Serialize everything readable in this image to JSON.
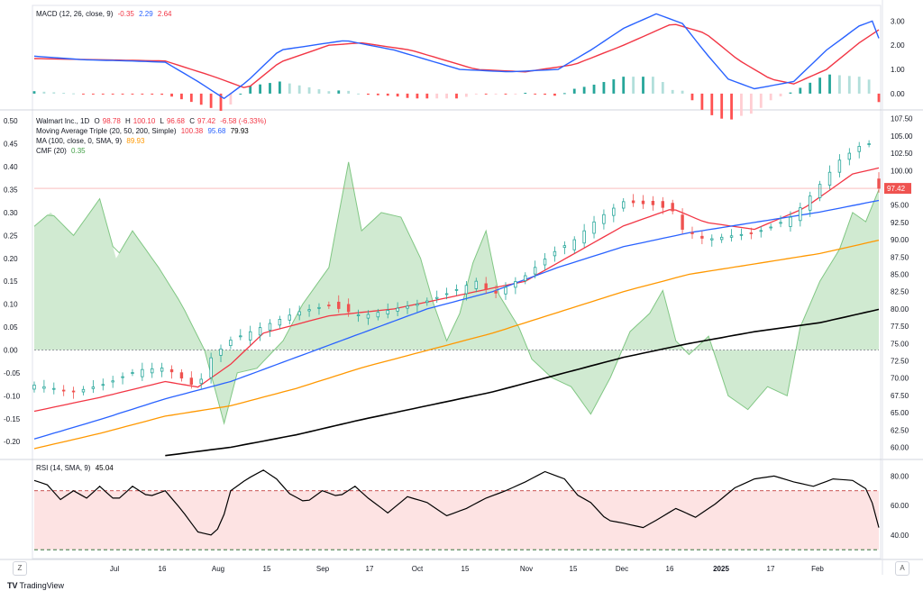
{
  "app": {
    "brand": "TradingView"
  },
  "macd_panel": {
    "label": "MACD (12, 26, close, 9)",
    "hist_value": "-0.35",
    "macd_value": "2.29",
    "signal_value": "2.64",
    "colors": {
      "macd": "#2962ff",
      "signal": "#f23645",
      "hist_pos_strong": "#26a69a",
      "hist_pos_weak": "#b2dfdb",
      "hist_neg_strong": "#ff5252",
      "hist_neg_weak": "#ffcdd2"
    },
    "axis_ticks": [
      "3.00",
      "2.00",
      "1.00",
      "0.00"
    ]
  },
  "main_panel": {
    "symbol": "Walmart Inc., 1D",
    "open_label": "O",
    "open": "98.78",
    "high_label": "H",
    "high": "100.10",
    "low_label": "L",
    "low": "96.68",
    "close_label": "C",
    "close": "97.42",
    "change": "-6.58 (-6.33%)",
    "ma_triple_label": "Moving Average Triple (20, 50, 200, Simple)",
    "ma20": "100.38",
    "ma50": "95.68",
    "ma200": "79.93",
    "ma100_label": "MA (100, close, 0, SMA, 9)",
    "ma100": "89.93",
    "cmf_label": "CMF (20)",
    "cmf": "0.35",
    "last_price_tag": "97.42",
    "colors": {
      "up": "#26a69a",
      "down": "#ef5350",
      "ma20": "#f23645",
      "ma50": "#2962ff",
      "ma100": "#ff9800",
      "ma200": "#000000",
      "cmf_fill": "#c8e6c9",
      "cmf_line": "#81c784"
    },
    "price_ticks": [
      "107.50",
      "105.00",
      "102.50",
      "100.00",
      "97.50",
      "95.00",
      "92.50",
      "90.00",
      "87.50",
      "85.00",
      "82.50",
      "80.00",
      "77.50",
      "75.00",
      "72.50",
      "70.00",
      "67.50",
      "65.00",
      "62.50",
      "60.00"
    ],
    "cmf_ticks": [
      "0.50",
      "0.45",
      "0.40",
      "0.35",
      "0.30",
      "0.25",
      "0.20",
      "0.15",
      "0.10",
      "0.05",
      "0.00",
      "-0.05",
      "-0.10",
      "-0.15",
      "-0.20"
    ]
  },
  "rsi_panel": {
    "label": "RSI (14, SMA, 9)",
    "value": "45.04",
    "colors": {
      "line": "#000000",
      "band": "#fde3e3",
      "bound": "#b71c1c",
      "mid": "#1b5e20"
    },
    "axis_ticks": [
      "80.00",
      "60.00",
      "40.00"
    ]
  },
  "time_axis": {
    "labels": [
      "Jul",
      "16",
      "Aug",
      "15",
      "Sep",
      "17",
      "Oct",
      "15",
      "Nov",
      "15",
      "Dec",
      "16",
      "2025",
      "17",
      "Feb"
    ]
  },
  "buttons": {
    "left": "Z",
    "right": "A"
  },
  "chart_data": {
    "type": "line",
    "title": "Walmart Inc., 1D",
    "x_range": [
      "Jun 2024",
      "Feb 2025"
    ],
    "price_ylim": [
      58.5,
      108.5
    ],
    "ohlc_last": {
      "open": 98.78,
      "high": 100.1,
      "low": 96.68,
      "close": 97.42,
      "change": -6.58,
      "change_pct": -6.33
    },
    "close_path": [
      [
        0,
        69.0
      ],
      [
        12,
        68.0
      ],
      [
        22,
        69.2
      ],
      [
        32,
        71.2
      ],
      [
        40,
        71.5
      ],
      [
        45,
        70.0
      ],
      [
        50,
        68.5
      ],
      [
        53,
        72.5
      ],
      [
        60,
        75.5
      ],
      [
        70,
        77.5
      ],
      [
        80,
        79.5
      ],
      [
        90,
        80.5
      ],
      [
        100,
        79.0
      ],
      [
        110,
        80.0
      ],
      [
        118,
        80.8
      ],
      [
        125,
        82.0
      ],
      [
        135,
        84.0
      ],
      [
        140,
        82.0
      ],
      [
        150,
        84.8
      ],
      [
        158,
        88.0
      ],
      [
        165,
        90.0
      ],
      [
        172,
        93.0
      ],
      [
        180,
        95.5
      ],
      [
        190,
        95.0
      ],
      [
        196,
        94.0
      ],
      [
        198,
        91.5
      ],
      [
        205,
        90.0
      ],
      [
        212,
        90.5
      ],
      [
        220,
        91.0
      ],
      [
        226,
        92.0
      ],
      [
        232,
        93.5
      ],
      [
        240,
        98.0
      ],
      [
        246,
        101.5
      ],
      [
        252,
        103.5
      ],
      [
        256,
        104.0
      ],
      [
        258,
        97.5
      ]
    ],
    "candle_step": 3,
    "series": [
      {
        "name": "MA 20",
        "values_path": [
          [
            0,
            65.2
          ],
          [
            20,
            67.2
          ],
          [
            40,
            69.5
          ],
          [
            50,
            68.7
          ],
          [
            60,
            72.0
          ],
          [
            70,
            76.5
          ],
          [
            90,
            79.0
          ],
          [
            110,
            80.0
          ],
          [
            130,
            82.0
          ],
          [
            150,
            84.0
          ],
          [
            165,
            88.0
          ],
          [
            180,
            92.0
          ],
          [
            195,
            94.5
          ],
          [
            205,
            92.5
          ],
          [
            220,
            91.5
          ],
          [
            235,
            94.5
          ],
          [
            250,
            99.5
          ],
          [
            258,
            100.38
          ]
        ]
      },
      {
        "name": "MA 50",
        "values_path": [
          [
            0,
            61.2
          ],
          [
            20,
            64.0
          ],
          [
            40,
            67.0
          ],
          [
            60,
            69.5
          ],
          [
            80,
            73.0
          ],
          [
            100,
            76.5
          ],
          [
            120,
            80.0
          ],
          [
            140,
            82.5
          ],
          [
            160,
            86.0
          ],
          [
            180,
            89.0
          ],
          [
            200,
            91.0
          ],
          [
            220,
            92.5
          ],
          [
            240,
            94.0
          ],
          [
            258,
            95.68
          ]
        ]
      },
      {
        "name": "MA 100",
        "values_path": [
          [
            0,
            59.8
          ],
          [
            20,
            62.0
          ],
          [
            40,
            64.5
          ],
          [
            60,
            66.0
          ],
          [
            80,
            68.5
          ],
          [
            100,
            71.5
          ],
          [
            120,
            74.0
          ],
          [
            140,
            76.5
          ],
          [
            160,
            79.5
          ],
          [
            180,
            82.5
          ],
          [
            200,
            85.0
          ],
          [
            220,
            86.5
          ],
          [
            240,
            88.0
          ],
          [
            258,
            89.93
          ]
        ]
      },
      {
        "name": "MA 200",
        "values_path": [
          [
            40,
            58.8
          ],
          [
            60,
            60.0
          ],
          [
            80,
            61.8
          ],
          [
            100,
            64.0
          ],
          [
            120,
            66.0
          ],
          [
            140,
            68.0
          ],
          [
            160,
            70.5
          ],
          [
            180,
            73.0
          ],
          [
            200,
            75.0
          ],
          [
            220,
            76.7
          ],
          [
            240,
            78.0
          ],
          [
            258,
            79.93
          ]
        ]
      }
    ],
    "cmf": {
      "ylim": [
        -0.235,
        0.52
      ],
      "last": 0.35,
      "values_path": [
        [
          0,
          0.27
        ],
        [
          5,
          0.3
        ],
        [
          12,
          0.25
        ],
        [
          20,
          0.33
        ],
        [
          25,
          0.2
        ],
        [
          30,
          0.26
        ],
        [
          38,
          0.18
        ],
        [
          45,
          0.1
        ],
        [
          52,
          0.0
        ],
        [
          58,
          -0.16
        ],
        [
          62,
          -0.05
        ],
        [
          68,
          -0.04
        ],
        [
          76,
          0.02
        ],
        [
          82,
          0.1
        ],
        [
          90,
          0.18
        ],
        [
          96,
          0.41
        ],
        [
          100,
          0.26
        ],
        [
          106,
          0.3
        ],
        [
          112,
          0.29
        ],
        [
          118,
          0.2
        ],
        [
          122,
          0.1
        ],
        [
          126,
          0.02
        ],
        [
          130,
          0.08
        ],
        [
          134,
          0.19
        ],
        [
          138,
          0.26
        ],
        [
          142,
          0.12
        ],
        [
          148,
          0.05
        ],
        [
          152,
          -0.02
        ],
        [
          158,
          -0.06
        ],
        [
          164,
          -0.08
        ],
        [
          170,
          -0.14
        ],
        [
          176,
          -0.06
        ],
        [
          182,
          0.04
        ],
        [
          188,
          0.08
        ],
        [
          192,
          0.13
        ],
        [
          196,
          0.02
        ],
        [
          200,
          -0.01
        ],
        [
          206,
          0.03
        ],
        [
          212,
          -0.1
        ],
        [
          218,
          -0.13
        ],
        [
          224,
          -0.08
        ],
        [
          230,
          -0.1
        ],
        [
          234,
          0.05
        ],
        [
          240,
          0.15
        ],
        [
          246,
          0.22
        ],
        [
          250,
          0.3
        ],
        [
          254,
          0.28
        ],
        [
          258,
          0.35
        ]
      ]
    },
    "macd": {
      "ylim": [
        -0.6,
        3.5
      ],
      "macd_last": 2.29,
      "signal_last": 2.64,
      "hist_last": -0.35,
      "macd_path": [
        [
          0,
          1.55
        ],
        [
          15,
          1.4
        ],
        [
          30,
          1.35
        ],
        [
          40,
          1.3
        ],
        [
          50,
          0.5
        ],
        [
          58,
          -0.2
        ],
        [
          65,
          0.5
        ],
        [
          75,
          1.8
        ],
        [
          85,
          2.0
        ],
        [
          95,
          2.2
        ],
        [
          110,
          1.8
        ],
        [
          130,
          1.0
        ],
        [
          145,
          0.9
        ],
        [
          160,
          1.0
        ],
        [
          170,
          1.8
        ],
        [
          180,
          2.7
        ],
        [
          190,
          3.3
        ],
        [
          198,
          2.9
        ],
        [
          205,
          1.7
        ],
        [
          212,
          0.6
        ],
        [
          220,
          0.2
        ],
        [
          232,
          0.5
        ],
        [
          242,
          1.8
        ],
        [
          252,
          2.8
        ],
        [
          256,
          3.0
        ],
        [
          258,
          2.29
        ]
      ],
      "signal_path": [
        [
          0,
          1.45
        ],
        [
          20,
          1.4
        ],
        [
          40,
          1.35
        ],
        [
          55,
          0.7
        ],
        [
          65,
          0.2
        ],
        [
          75,
          1.3
        ],
        [
          90,
          2.0
        ],
        [
          100,
          2.1
        ],
        [
          115,
          1.8
        ],
        [
          135,
          1.0
        ],
        [
          150,
          0.9
        ],
        [
          165,
          1.2
        ],
        [
          180,
          2.0
        ],
        [
          195,
          2.9
        ],
        [
          205,
          2.5
        ],
        [
          215,
          1.4
        ],
        [
          225,
          0.6
        ],
        [
          232,
          0.4
        ],
        [
          242,
          1.0
        ],
        [
          252,
          2.1
        ],
        [
          258,
          2.64
        ]
      ]
    },
    "rsi": {
      "ylim": [
        24,
        90
      ],
      "upper": 70,
      "lower": 30,
      "last": 45.04,
      "values_path": [
        [
          0,
          77
        ],
        [
          4,
          74
        ],
        [
          8,
          64
        ],
        [
          12,
          70
        ],
        [
          16,
          65
        ],
        [
          20,
          73
        ],
        [
          25,
          63
        ],
        [
          30,
          73
        ],
        [
          35,
          66
        ],
        [
          40,
          70
        ],
        [
          45,
          57
        ],
        [
          50,
          42
        ],
        [
          54,
          40
        ],
        [
          57,
          46
        ],
        [
          60,
          70
        ],
        [
          65,
          78
        ],
        [
          70,
          84
        ],
        [
          74,
          78
        ],
        [
          78,
          68
        ],
        [
          83,
          62
        ],
        [
          88,
          70
        ],
        [
          93,
          66
        ],
        [
          98,
          73
        ],
        [
          102,
          65
        ],
        [
          108,
          55
        ],
        [
          114,
          66
        ],
        [
          120,
          62
        ],
        [
          126,
          53
        ],
        [
          132,
          58
        ],
        [
          138,
          65
        ],
        [
          144,
          70
        ],
        [
          150,
          76
        ],
        [
          156,
          83
        ],
        [
          162,
          78
        ],
        [
          166,
          67
        ],
        [
          170,
          62
        ],
        [
          175,
          50
        ],
        [
          180,
          48
        ],
        [
          186,
          45
        ],
        [
          190,
          50
        ],
        [
          196,
          58
        ],
        [
          202,
          52
        ],
        [
          208,
          61
        ],
        [
          214,
          72
        ],
        [
          220,
          78
        ],
        [
          226,
          80
        ],
        [
          232,
          76
        ],
        [
          238,
          73
        ],
        [
          244,
          78
        ],
        [
          250,
          77
        ],
        [
          255,
          70
        ],
        [
          258,
          45.04
        ]
      ]
    }
  }
}
